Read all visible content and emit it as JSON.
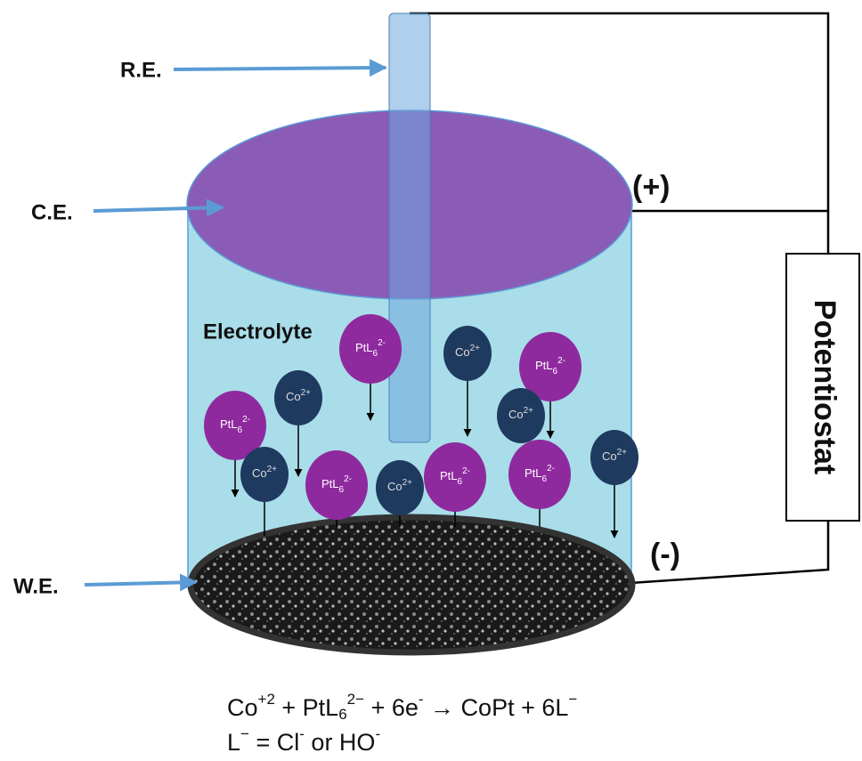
{
  "labels": {
    "re": "R.E.",
    "ce": "C.E.",
    "we": "W.E.",
    "plus": "(+)",
    "minus": "(-)",
    "device": "Potentiostat",
    "electrolyte": "Electrolyte"
  },
  "ions": [
    {
      "formula": "PtL",
      "sub": "6",
      "sup": "2-"
    },
    {
      "formula": "Co",
      "sup": "2+"
    },
    {
      "formula": "PtL",
      "sub": "6",
      "sup": "2-"
    },
    {
      "formula": "Co",
      "sup": "2+"
    },
    {
      "formula": "Co",
      "sup": "2+"
    },
    {
      "formula": "PtL",
      "sub": "6",
      "sup": "2-"
    },
    {
      "formula": "Co",
      "sup": "2+"
    },
    {
      "formula": "PtL",
      "sub": "6",
      "sup": "2-"
    },
    {
      "formula": "Co",
      "sup": "2+"
    },
    {
      "formula": "PtL",
      "sub": "6",
      "sup": "2-"
    },
    {
      "formula": "PtL",
      "sub": "6",
      "sup": "2-"
    },
    {
      "formula": "Co",
      "sup": "2+"
    }
  ],
  "equation": {
    "line1": [
      {
        "text": "Co"
      },
      {
        "sup": "+2"
      },
      {
        "text": " + PtL"
      },
      {
        "sub": "6"
      },
      {
        "sup": "2−"
      },
      {
        "text": " + 6e"
      },
      {
        "sup": "-"
      },
      {
        "text": " → CoPt + 6L"
      },
      {
        "sup": "−"
      }
    ],
    "line2": [
      {
        "text": "L"
      },
      {
        "sup": "−"
      },
      {
        "text": " = Cl"
      },
      {
        "sup": "-"
      },
      {
        "text": " or HO"
      },
      {
        "sup": "-"
      }
    ]
  }
}
